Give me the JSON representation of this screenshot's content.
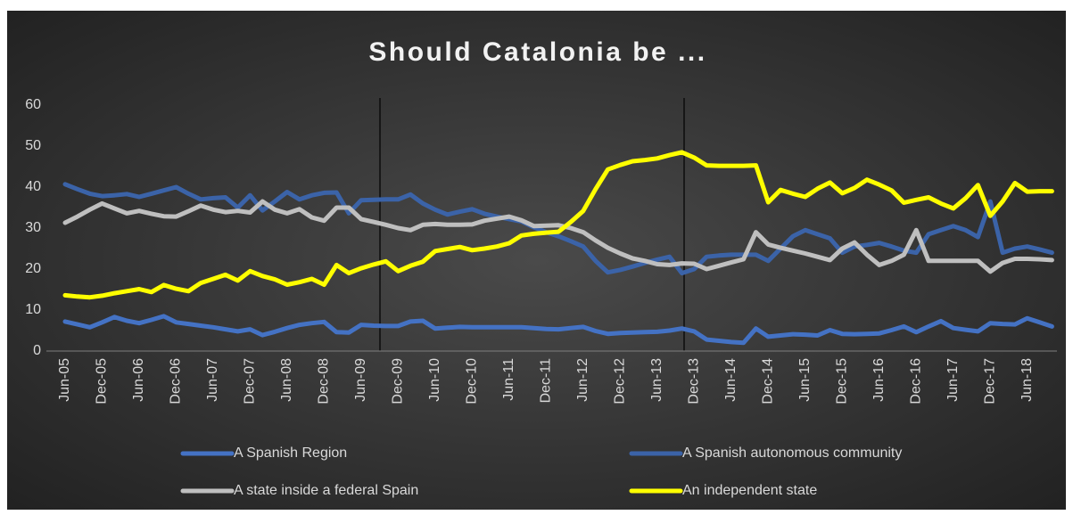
{
  "chart_data": {
    "type": "line",
    "title": "Should Catalonia be ...",
    "categories": [
      "Jun-05",
      null,
      null,
      "Dec-05",
      null,
      null,
      "Jun-06",
      null,
      null,
      "Dec-06",
      null,
      null,
      "Jun-07",
      null,
      null,
      "Dec-07",
      null,
      null,
      "Jun-08",
      null,
      null,
      "Dec-08",
      null,
      null,
      "Jun-09",
      null,
      null,
      "Dec-09",
      null,
      null,
      "Jun-10",
      null,
      null,
      "Dec-10",
      null,
      null,
      "Jun-11",
      null,
      null,
      "Dec-11",
      null,
      null,
      "Jun-12",
      null,
      null,
      "Dec-12",
      null,
      null,
      "Jun-13",
      null,
      null,
      "Dec-13",
      null,
      null,
      "Jun-14",
      null,
      null,
      "Dec-14",
      null,
      null,
      "Jun-15",
      null,
      null,
      "Dec-15",
      null,
      null,
      "Jun-16",
      null,
      null,
      "Dec-16",
      null,
      null,
      "Jun-17",
      null,
      null,
      "Dec-17",
      null,
      null,
      "Jun-18",
      null,
      null
    ],
    "series": [
      {
        "name": "A Spanish Region",
        "color": "#4472c4",
        "values": [
          7.2,
          6.5,
          5.8,
          7.0,
          8.3,
          7.4,
          6.8,
          7.6,
          8.5,
          7.0,
          6.6,
          6.2,
          5.8,
          5.3,
          4.8,
          5.3,
          3.9,
          4.7,
          5.6,
          6.4,
          6.8,
          7.1,
          4.6,
          4.5,
          6.4,
          6.2,
          6.1,
          6.1,
          7.2,
          7.4,
          5.5,
          5.7,
          5.9,
          5.8,
          5.8,
          5.8,
          5.8,
          5.8,
          5.6,
          5.4,
          5.3,
          5.6,
          5.9,
          4.9,
          4.2,
          4.4,
          4.5,
          4.6,
          4.7,
          5.0,
          5.5,
          4.8,
          2.8,
          2.5,
          2.2,
          2.0,
          5.5,
          3.5,
          3.8,
          4.1,
          4.0,
          3.8,
          5.1,
          4.2,
          4.1,
          4.2,
          4.3,
          5.1,
          6.0,
          4.6,
          6.0,
          7.3,
          5.6,
          5.2,
          4.8,
          6.8,
          6.6,
          6.5,
          8.0,
          7.0,
          6.0
        ]
      },
      {
        "name": "A Spanish autonomous community",
        "color": "#3b63a8",
        "values": [
          40.7,
          39.5,
          38.4,
          37.8,
          38.0,
          38.3,
          37.6,
          38.4,
          39.2,
          40.0,
          38.4,
          37.0,
          37.3,
          37.5,
          35.0,
          38.0,
          34.3,
          36.5,
          38.8,
          37.0,
          38.0,
          38.6,
          38.7,
          33.6,
          36.8,
          36.9,
          37.0,
          37.0,
          38.2,
          36.0,
          34.5,
          33.3,
          34.0,
          34.6,
          33.5,
          32.8,
          32.2,
          31.6,
          30.2,
          29.0,
          28.0,
          26.8,
          25.5,
          22.0,
          19.2,
          19.8,
          20.6,
          21.5,
          22.3,
          23.0,
          19.0,
          20.0,
          23.0,
          23.3,
          23.5,
          23.5,
          23.5,
          22.0,
          25.0,
          28.0,
          29.5,
          28.5,
          27.5,
          24.0,
          25.5,
          25.9,
          26.4,
          25.5,
          24.5,
          24.0,
          28.5,
          29.5,
          30.5,
          29.5,
          27.8,
          36.5,
          24.0,
          25.0,
          25.5,
          24.8,
          24.0
        ]
      },
      {
        "name": "A state inside a federal Spain",
        "color": "#bfbfbf",
        "values": [
          31.3,
          32.8,
          34.5,
          36.0,
          34.8,
          33.6,
          34.2,
          33.5,
          32.9,
          32.8,
          34.1,
          35.5,
          34.5,
          33.9,
          34.2,
          33.8,
          36.5,
          34.5,
          33.6,
          34.6,
          32.6,
          31.8,
          35.0,
          35.0,
          32.2,
          31.5,
          30.8,
          30.0,
          29.5,
          30.8,
          31.0,
          30.8,
          30.8,
          30.9,
          31.8,
          32.3,
          32.8,
          31.9,
          30.5,
          30.6,
          30.7,
          30.0,
          29.0,
          27.0,
          25.2,
          23.8,
          22.6,
          22.0,
          21.2,
          21.0,
          21.4,
          21.3,
          20.0,
          20.8,
          21.6,
          22.4,
          29.0,
          26.0,
          25.2,
          24.5,
          23.8,
          23.0,
          22.2,
          25.0,
          26.5,
          23.5,
          21.0,
          22.0,
          23.5,
          29.5,
          22.0,
          22.0,
          22.0,
          22.0,
          22.0,
          19.4,
          21.5,
          22.5,
          22.5,
          22.4,
          22.2
        ]
      },
      {
        "name": "An independent state",
        "color": "#ffff00",
        "values": [
          13.6,
          13.3,
          13.1,
          13.5,
          14.1,
          14.6,
          15.1,
          14.4,
          16.1,
          15.2,
          14.6,
          16.6,
          17.6,
          18.6,
          17.2,
          19.5,
          18.3,
          17.5,
          16.2,
          16.8,
          17.6,
          16.2,
          21.0,
          19.0,
          20.2,
          21.1,
          21.9,
          19.5,
          20.8,
          21.8,
          24.4,
          24.9,
          25.4,
          24.6,
          25.0,
          25.5,
          26.3,
          28.2,
          28.6,
          28.9,
          29.1,
          31.5,
          34.2,
          39.5,
          44.3,
          45.4,
          46.3,
          46.6,
          47.0,
          47.8,
          48.5,
          47.2,
          45.3,
          45.2,
          45.2,
          45.2,
          45.3,
          36.3,
          39.3,
          38.4,
          37.6,
          39.6,
          41.1,
          38.5,
          39.8,
          41.8,
          40.6,
          39.2,
          36.2,
          36.9,
          37.5,
          36.0,
          34.8,
          37.3,
          40.5,
          33.0,
          36.5,
          41.0,
          38.9,
          39.0,
          39.0
        ]
      }
    ],
    "ylim": [
      0,
      60
    ],
    "yticks": [
      0,
      10,
      20,
      30,
      40,
      50,
      60
    ],
    "grid": false,
    "legend": "bottom"
  }
}
